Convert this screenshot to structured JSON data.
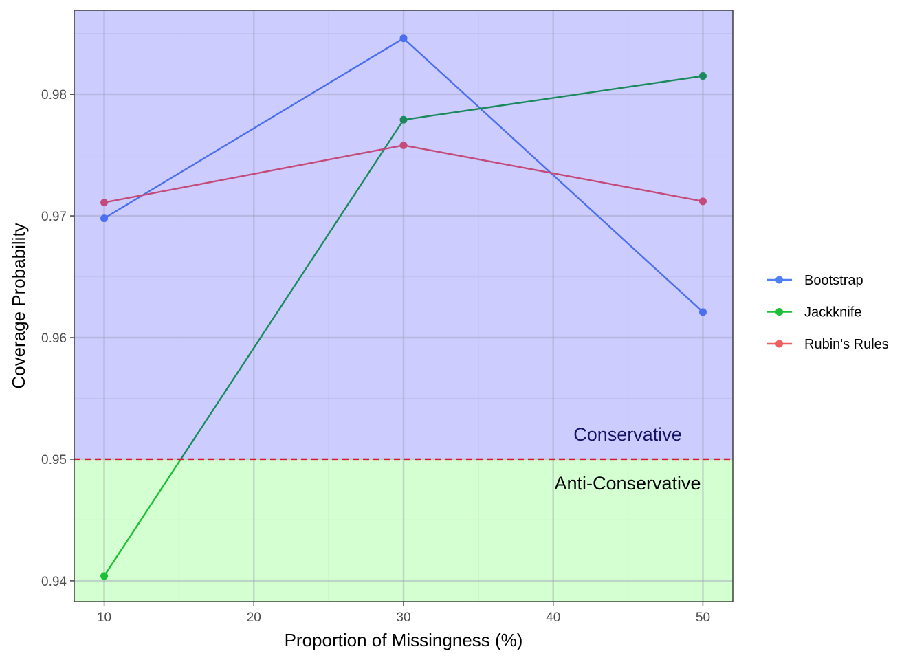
{
  "chart_data": {
    "type": "line",
    "xlabel": "Proportion of Missingness (%)",
    "ylabel": "Coverage Probability",
    "xlim": [
      8,
      52
    ],
    "ylim": [
      0.9383,
      0.9869
    ],
    "x_ticks": [
      10,
      20,
      30,
      40,
      50
    ],
    "x_tick_labels": [
      "10",
      "20",
      "30",
      "40",
      "50"
    ],
    "y_ticks": [
      0.94,
      0.95,
      0.96,
      0.97,
      0.98
    ],
    "y_tick_labels": [
      "0.94",
      "0.95",
      "0.96",
      "0.97",
      "0.98"
    ],
    "x": [
      10,
      30,
      50
    ],
    "series": [
      {
        "name": "Bootstrap",
        "values": [
          0.9698,
          0.9846,
          0.9621
        ],
        "color": "#4f7ff5"
      },
      {
        "name": "Jackknife",
        "values": [
          0.9404,
          0.9779,
          0.9815
        ],
        "color": "#1cbf35"
      },
      {
        "name": "Rubin's Rules",
        "values": [
          0.9711,
          0.9758,
          0.9712
        ],
        "color": "#ef5f5f"
      }
    ],
    "reference_line": {
      "y": 0.95,
      "color": "#d9182b",
      "style": "dashed"
    },
    "regions": [
      {
        "label": "Conservative",
        "from": 0.95,
        "to": "top",
        "fill": "#ccccff",
        "text_color": "#141466"
      },
      {
        "label": "Anti-Conservative",
        "from": "bottom",
        "to": 0.95,
        "fill": "#d4ffd0",
        "text_color": "#000000"
      }
    ],
    "grid": true,
    "legend_position": "right"
  }
}
